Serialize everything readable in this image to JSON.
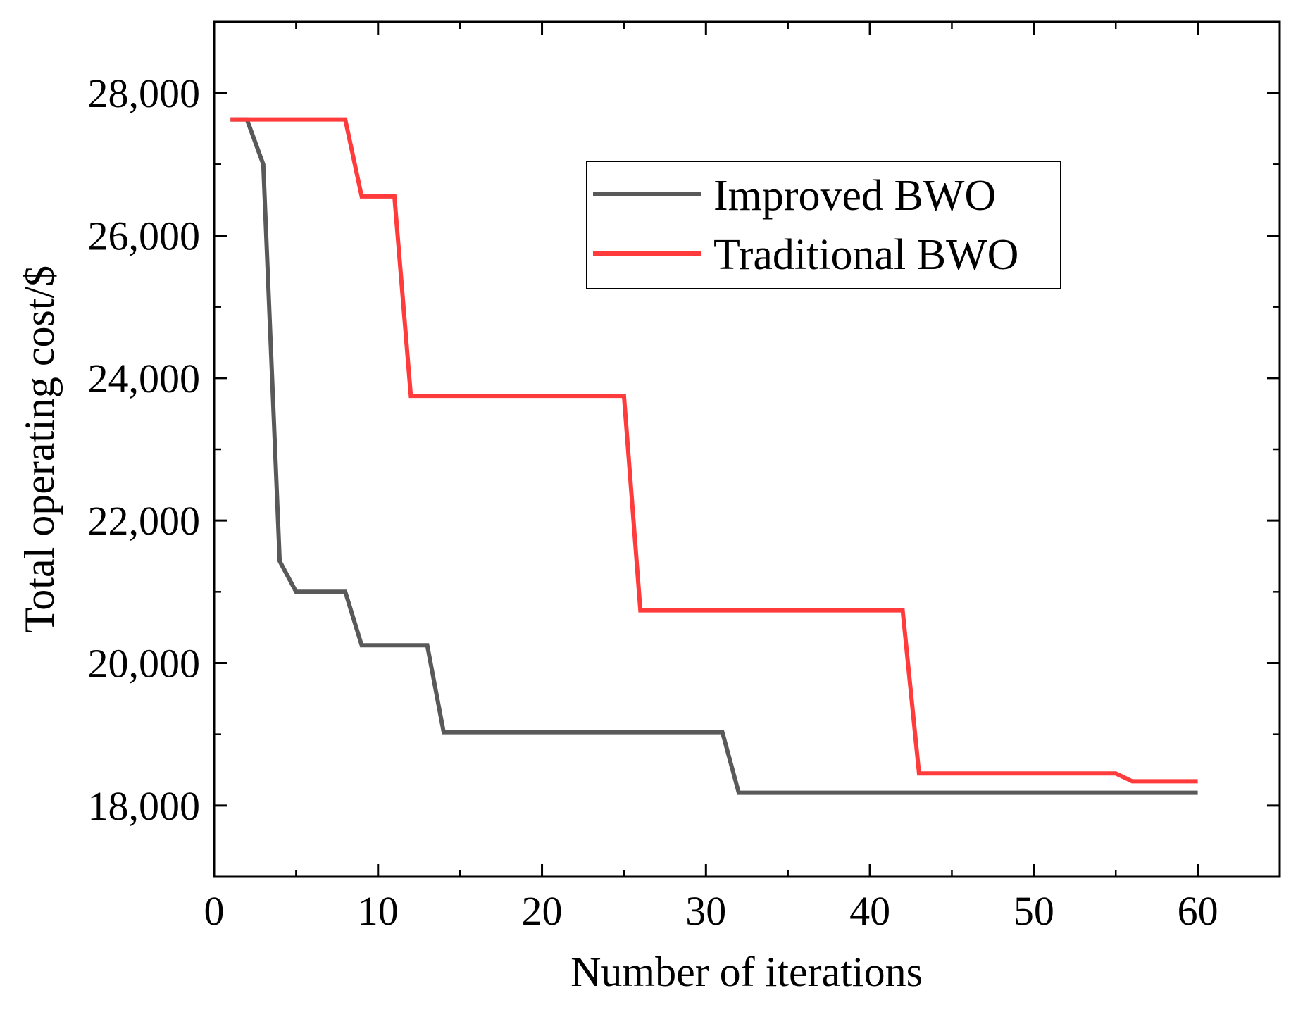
{
  "chart_data": {
    "type": "line",
    "title": "",
    "xlabel": "Number of iterations",
    "ylabel": "Total operating cost/$",
    "xlim": [
      0,
      65
    ],
    "ylim": [
      17000,
      29000
    ],
    "x_ticks": [
      0,
      10,
      20,
      30,
      40,
      50,
      60
    ],
    "x_tick_labels": [
      "0",
      "10",
      "20",
      "30",
      "40",
      "50",
      "60"
    ],
    "x_minor_ticks": [
      5,
      15,
      25,
      35,
      45,
      55,
      65
    ],
    "y_ticks": [
      18000,
      20000,
      22000,
      24000,
      26000,
      28000
    ],
    "y_tick_labels": [
      "18,000",
      "20,000",
      "22,000",
      "24,000",
      "26,000",
      "28,000"
    ],
    "y_minor_ticks": [
      17000,
      19000,
      21000,
      23000,
      25000,
      27000,
      29000
    ],
    "grid": false,
    "legend_position": "top-right",
    "series": [
      {
        "name": "Improved BWO",
        "color": "#595959",
        "x": [
          1,
          2,
          3,
          4,
          5,
          8,
          9,
          13,
          14,
          31,
          32,
          60
        ],
        "y": [
          27630,
          27630,
          27000,
          21430,
          21000,
          21000,
          20250,
          20250,
          19030,
          19030,
          18180,
          18180
        ]
      },
      {
        "name": "Traditional BWO",
        "color": "#ff3b3b",
        "x": [
          1,
          8,
          9,
          11,
          12,
          25,
          26,
          42,
          43,
          55,
          56,
          60
        ],
        "y": [
          27630,
          27630,
          26550,
          26550,
          23750,
          23750,
          20740,
          20740,
          18450,
          18450,
          18340,
          18340
        ]
      }
    ]
  }
}
